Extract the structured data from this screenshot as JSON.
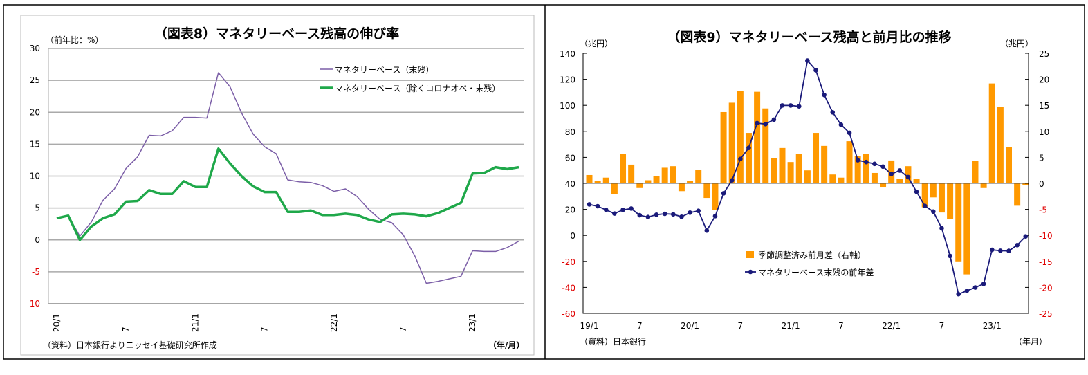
{
  "chart_data": [
    {
      "type": "line",
      "title": "（図表8）マネタリーベース残高の伸び率",
      "ylabel": "（前年比：%）",
      "xlabel": "（年/月）",
      "source": "（資料）日本銀行よりニッセイ基礎研究所作成",
      "ylim": [
        -10,
        30
      ],
      "yticks": [
        "30",
        "25",
        "20",
        "15",
        "10",
        "5",
        "0",
        "-5",
        "-10"
      ],
      "xtick_labels": [
        "20/1",
        "7",
        "21/1",
        "7",
        "22/1",
        "7",
        "23/1"
      ],
      "x_start": "2020/1",
      "x_end": "2023/5",
      "grid": true,
      "legend_position": "top-right",
      "series": [
        {
          "name": "マネタリーベース（末残）",
          "color": "#7b5ea7",
          "values": [
            3.4,
            3.8,
            0.6,
            2.8,
            6.2,
            8.0,
            11.2,
            13.0,
            16.4,
            16.3,
            17.1,
            19.2,
            19.2,
            19.1,
            26.2,
            24.0,
            19.9,
            16.6,
            14.6,
            13.5,
            9.4,
            9.1,
            9.0,
            8.5,
            7.6,
            8.0,
            6.8,
            4.8,
            3.2,
            2.7,
            0.8,
            -2.5,
            -6.8,
            -6.5,
            -6.1,
            -5.7,
            -1.7,
            -1.8,
            -1.8,
            -1.2,
            -0.2
          ]
        },
        {
          "name": "マネタリーベース（除くコロナオペ・末残）",
          "color": "#1fa84a",
          "values": [
            3.4,
            3.8,
            0.0,
            2.1,
            3.4,
            4.0,
            6.0,
            6.1,
            7.8,
            7.2,
            7.2,
            9.2,
            8.3,
            8.3,
            14.3,
            12.0,
            10.0,
            8.4,
            7.5,
            7.5,
            4.4,
            4.4,
            4.6,
            3.9,
            3.9,
            4.1,
            3.9,
            3.2,
            2.8,
            4.0,
            4.1,
            4.0,
            3.7,
            4.2,
            5.0,
            5.8,
            10.4,
            10.5,
            11.4,
            11.1,
            11.4
          ]
        }
      ]
    },
    {
      "type": "bar+line",
      "title": "（図表9）マネタリーベース残高と前月比の推移",
      "ylabel_left": "（兆円）",
      "ylabel_right": "（兆円）",
      "xlabel": "（年月）",
      "source": "（資料）日本銀行",
      "ylim_left": [
        -60,
        140
      ],
      "ylim_right": [
        -25,
        25
      ],
      "yticks_left": [
        "140",
        "120",
        "100",
        "80",
        "60",
        "40",
        "20",
        "0",
        "-20",
        "-40",
        "-60"
      ],
      "yticks_right": [
        "25",
        "20",
        "15",
        "10",
        "5",
        "0",
        "-5",
        "-10",
        "-15",
        "-20",
        "-25"
      ],
      "xtick_labels": [
        "19/1",
        "7",
        "20/1",
        "7",
        "21/1",
        "7",
        "22/1",
        "7",
        "23/1"
      ],
      "x_start": "2019/1",
      "x_end": "2023/5",
      "negative_tick_color": "#e00000",
      "legend_position": "center",
      "series": [
        {
          "name": "季節調整済み前月差（右軸）",
          "type": "bar",
          "axis": "right",
          "color": "#ff9900",
          "values": [
            1.6,
            0.5,
            1.1,
            -2.0,
            5.7,
            3.6,
            -0.9,
            0.6,
            1.4,
            3.0,
            3.3,
            -1.5,
            0.5,
            2.6,
            -2.8,
            -5.1,
            13.7,
            15.5,
            17.7,
            9.7,
            17.6,
            14.4,
            4.9,
            6.8,
            4.1,
            5.7,
            2.5,
            9.7,
            7.2,
            1.7,
            1.1,
            8.1,
            5.2,
            5.6,
            2.0,
            -0.8,
            4.4,
            0.9,
            3.3,
            0.8,
            -4.6,
            -2.7,
            -5.6,
            -6.9,
            -15.0,
            -17.5,
            4.3,
            -0.9,
            19.2,
            14.7,
            7.0,
            -4.3,
            -0.4
          ]
        },
        {
          "name": "マネタリーベース末残の前年差",
          "type": "line",
          "axis": "left",
          "color": "#1a1a7a",
          "values": [
            23.8,
            22.4,
            19.6,
            16.8,
            19.6,
            20.6,
            15.5,
            14.1,
            15.9,
            16.6,
            16.2,
            14.3,
            17.5,
            18.9,
            3.7,
            14.8,
            32.3,
            42.3,
            58.7,
            67.3,
            86.3,
            85.6,
            89.0,
            99.9,
            99.9,
            99.2,
            134.4,
            127.0,
            108.0,
            94.6,
            85.1,
            78.9,
            57.8,
            56.4,
            55.0,
            52.9,
            47.2,
            49.9,
            44.8,
            33.5,
            22.6,
            18.3,
            5.5,
            -15.8,
            -45.2,
            -42.6,
            -40.1,
            -37.3,
            -11.1,
            -11.8,
            -11.9,
            -7.5,
            -0.8
          ]
        }
      ]
    }
  ]
}
